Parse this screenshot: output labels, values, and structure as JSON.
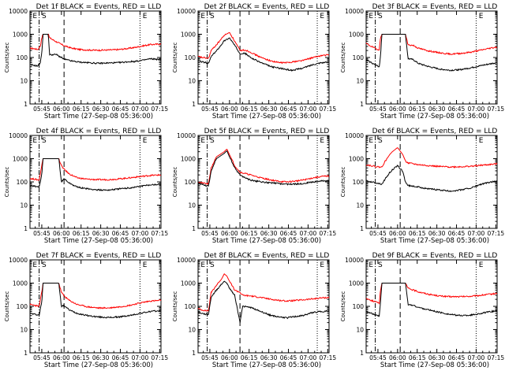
{
  "window": {
    "title": "Det 1f BLACK = Events, RED = LLD"
  },
  "colors": {
    "events": "#000000",
    "lld": "#ff0000",
    "frame": "#000000",
    "background": "#ffffff"
  },
  "shared": {
    "xlabel": "Start Time (27-Sep-08 05:36:00)",
    "ylabel": "Counts/sec",
    "x_ticks": [
      "05:45",
      "06:00",
      "06:15",
      "06:30",
      "06:45",
      "07:00",
      "07:15"
    ],
    "y_ticks": [
      "1",
      "10",
      "100",
      "1000",
      "10000"
    ],
    "markers": [
      "E",
      "S",
      "E"
    ]
  },
  "chart_data": [
    {
      "panel": 1,
      "title": "Det 1f BLACK = Events, RED = LLD",
      "type": "line",
      "yscale": "log",
      "xlim": [
        "05:36",
        "07:16"
      ],
      "ylim": [
        1,
        10000
      ],
      "xlabel": "Start Time (27-Sep-08 05:36:00)",
      "ylabel": "Counts/sec",
      "markers": [
        "E",
        "S",
        "E"
      ],
      "events_mins": [
        0,
        3,
        6,
        8,
        9,
        10,
        12,
        13,
        14,
        15,
        20,
        26,
        32,
        38,
        44,
        52,
        60,
        68,
        76,
        80,
        84,
        88,
        92,
        96,
        100
      ],
      "events": [
        48,
        46,
        43,
        62,
        160,
        1000,
        1000,
        1000,
        1000,
        130,
        135,
        85,
        70,
        63,
        60,
        56,
        58,
        60,
        66,
        68,
        72,
        80,
        88,
        85,
        80
      ],
      "lld_mins": [
        0,
        3,
        6,
        8,
        9,
        10,
        12,
        13,
        14,
        15,
        20,
        26,
        32,
        38,
        44,
        52,
        60,
        68,
        76,
        80,
        84,
        88,
        92,
        96,
        100
      ],
      "lld": [
        250,
        240,
        220,
        320,
        700,
        1000,
        1000,
        1000,
        1000,
        700,
        480,
        320,
        250,
        220,
        210,
        205,
        210,
        220,
        250,
        270,
        300,
        330,
        360,
        370,
        380
      ]
    },
    {
      "panel": 2,
      "title": "Det 2f BLACK = Events, RED = LLD",
      "type": "line",
      "yscale": "log",
      "xlim": [
        "05:36",
        "07:16"
      ],
      "ylim": [
        1,
        10000
      ],
      "xlabel": "Start Time (27-Sep-08 05:36:00)",
      "ylabel": "Counts/sec",
      "markers": [
        "E",
        "S",
        "E"
      ],
      "events_mins": [
        0,
        3,
        6,
        8,
        10,
        14,
        20,
        24,
        28,
        32,
        36,
        40,
        48,
        56,
        62,
        68,
        72,
        80,
        88,
        94,
        100
      ],
      "events": [
        70,
        65,
        60,
        55,
        110,
        190,
        520,
        700,
        330,
        150,
        150,
        100,
        60,
        40,
        35,
        30,
        28,
        35,
        50,
        60,
        62
      ],
      "lld_mins": [
        0,
        3,
        6,
        8,
        10,
        14,
        20,
        24,
        28,
        32,
        36,
        40,
        48,
        56,
        62,
        68,
        72,
        80,
        88,
        94,
        100
      ],
      "lld": [
        110,
        100,
        95,
        90,
        200,
        350,
        900,
        1200,
        500,
        200,
        210,
        170,
        100,
        70,
        60,
        60,
        65,
        75,
        100,
        120,
        130
      ]
    },
    {
      "panel": 3,
      "title": "Det 3f BLACK = Events, RED = LLD",
      "type": "line",
      "yscale": "log",
      "xlim": [
        "05:36",
        "07:16"
      ],
      "ylim": [
        1,
        10000
      ],
      "xlabel": "Start Time (27-Sep-08 05:36:00)",
      "ylabel": "Counts/sec",
      "markers": [
        "E",
        "S",
        "E"
      ],
      "events_mins": [
        0,
        4,
        8,
        10,
        11,
        12,
        14,
        20,
        26,
        30,
        32,
        36,
        40,
        48,
        56,
        64,
        72,
        80,
        88,
        96,
        100
      ],
      "events": [
        80,
        60,
        45,
        40,
        120,
        1000,
        1000,
        1000,
        1000,
        1000,
        90,
        80,
        55,
        40,
        32,
        28,
        30,
        36,
        45,
        55,
        60
      ],
      "lld_mins": [
        0,
        4,
        8,
        10,
        11,
        12,
        14,
        20,
        26,
        30,
        32,
        36,
        40,
        48,
        56,
        64,
        72,
        80,
        88,
        96,
        100
      ],
      "lld": [
        400,
        300,
        230,
        220,
        700,
        1000,
        1000,
        1000,
        1000,
        1000,
        350,
        330,
        250,
        190,
        160,
        140,
        150,
        170,
        210,
        260,
        280
      ]
    },
    {
      "panel": 4,
      "title": "Det 4f BLACK = Events, RED = LLD",
      "type": "line",
      "yscale": "log",
      "xlim": [
        "05:36",
        "07:16"
      ],
      "ylim": [
        1,
        10000
      ],
      "xlabel": "Start Time (27-Sep-08 05:36:00)",
      "ylabel": "Counts/sec",
      "markers": [
        "E",
        "S",
        "E"
      ],
      "events_mins": [
        0,
        4,
        7,
        9,
        10,
        12,
        20,
        22,
        24,
        26,
        30,
        36,
        44,
        52,
        60,
        68,
        76,
        84,
        92,
        100
      ],
      "events": [
        70,
        65,
        60,
        200,
        1000,
        1000,
        1000,
        1000,
        100,
        140,
        90,
        60,
        50,
        45,
        45,
        50,
        55,
        65,
        75,
        80
      ],
      "lld_mins": [
        0,
        4,
        7,
        9,
        10,
        12,
        20,
        22,
        24,
        26,
        30,
        36,
        44,
        52,
        60,
        68,
        76,
        84,
        92,
        100
      ],
      "lld": [
        140,
        130,
        120,
        500,
        1000,
        1000,
        1000,
        1000,
        500,
        350,
        220,
        150,
        130,
        125,
        125,
        135,
        150,
        170,
        190,
        200
      ]
    },
    {
      "panel": 5,
      "title": "Det 5f BLACK = Events, RED = LLD",
      "type": "line",
      "yscale": "log",
      "xlim": [
        "05:36",
        "07:16"
      ],
      "ylim": [
        1,
        10000
      ],
      "xlabel": "Start Time (27-Sep-08 05:36:00)",
      "ylabel": "Counts/sec",
      "markers": [
        "E",
        "S",
        "E"
      ],
      "events_mins": [
        0,
        3,
        6,
        8,
        10,
        14,
        20,
        22,
        24,
        28,
        32,
        36,
        40,
        48,
        56,
        62,
        68,
        72,
        80,
        88,
        94,
        100
      ],
      "events": [
        90,
        80,
        70,
        65,
        300,
        1000,
        1700,
        2200,
        1200,
        400,
        200,
        150,
        120,
        100,
        90,
        85,
        80,
        80,
        85,
        100,
        110,
        115
      ],
      "lld_mins": [
        0,
        3,
        6,
        8,
        10,
        14,
        20,
        22,
        24,
        28,
        32,
        36,
        40,
        48,
        56,
        62,
        68,
        72,
        80,
        88,
        94,
        100
      ],
      "lld": [
        100,
        90,
        85,
        80,
        400,
        1200,
        2000,
        2600,
        1500,
        500,
        260,
        230,
        200,
        150,
        120,
        105,
        100,
        105,
        120,
        150,
        170,
        180
      ]
    },
    {
      "panel": 6,
      "title": "Det 6f BLACK = Events, RED = LLD",
      "type": "line",
      "yscale": "log",
      "xlim": [
        "05:36",
        "07:16"
      ],
      "ylim": [
        1,
        10000
      ],
      "xlabel": "Start Time (27-Sep-08 05:36:00)",
      "ylabel": "Counts/sec",
      "markers": [
        "E",
        "S",
        "E"
      ],
      "events_mins": [
        0,
        4,
        8,
        12,
        14,
        18,
        20,
        24,
        28,
        30,
        32,
        36,
        40,
        48,
        56,
        64,
        72,
        80,
        88,
        96,
        100
      ],
      "events": [
        110,
        100,
        90,
        80,
        120,
        250,
        330,
        500,
        280,
        100,
        70,
        65,
        60,
        50,
        45,
        40,
        45,
        55,
        80,
        100,
        105
      ],
      "lld_mins": [
        0,
        4,
        8,
        12,
        14,
        18,
        20,
        24,
        28,
        30,
        32,
        36,
        40,
        48,
        56,
        64,
        72,
        80,
        88,
        96,
        100
      ],
      "lld": [
        550,
        500,
        450,
        430,
        700,
        1500,
        2000,
        3000,
        1500,
        800,
        650,
        600,
        550,
        500,
        460,
        440,
        450,
        470,
        520,
        570,
        600
      ]
    },
    {
      "panel": 7,
      "title": "Det 7f BLACK = Events, RED = LLD",
      "type": "line",
      "yscale": "log",
      "xlim": [
        "05:36",
        "07:16"
      ],
      "ylim": [
        1,
        10000
      ],
      "xlabel": "Start Time (27-Sep-08 05:36:00)",
      "ylabel": "Counts/sec",
      "markers": [
        "E",
        "S",
        "E"
      ],
      "events_mins": [
        0,
        4,
        7,
        9,
        10,
        12,
        20,
        22,
        24,
        26,
        30,
        36,
        44,
        52,
        60,
        68,
        76,
        84,
        92,
        100
      ],
      "events": [
        50,
        45,
        42,
        150,
        1000,
        1000,
        1000,
        1000,
        100,
        110,
        70,
        50,
        40,
        35,
        33,
        35,
        40,
        50,
        60,
        65
      ],
      "lld_mins": [
        0,
        4,
        7,
        9,
        10,
        12,
        20,
        22,
        24,
        26,
        30,
        36,
        44,
        52,
        60,
        68,
        76,
        84,
        92,
        100
      ],
      "lld": [
        120,
        110,
        100,
        400,
        1000,
        1000,
        1000,
        1000,
        400,
        280,
        180,
        120,
        95,
        85,
        85,
        95,
        110,
        140,
        170,
        180
      ]
    },
    {
      "panel": 8,
      "title": "Det 8f BLACK = Events, RED = LLD",
      "type": "line",
      "yscale": "log",
      "xlim": [
        "05:36",
        "07:16"
      ],
      "ylim": [
        1,
        10000
      ],
      "xlabel": "Start Time (27-Sep-08 05:36:00)",
      "ylabel": "Counts/sec",
      "markers": [
        "E",
        "S",
        "E"
      ],
      "events_mins": [
        0,
        3,
        6,
        8,
        10,
        14,
        18,
        20,
        22,
        24,
        28,
        32,
        34,
        40,
        48,
        56,
        62,
        68,
        72,
        80,
        88,
        94,
        100
      ],
      "events": [
        55,
        50,
        45,
        45,
        250,
        500,
        900,
        1200,
        1000,
        600,
        300,
        20,
        100,
        90,
        60,
        40,
        35,
        32,
        35,
        40,
        55,
        60,
        62
      ],
      "lld_mins": [
        0,
        3,
        6,
        8,
        10,
        14,
        18,
        20,
        22,
        24,
        28,
        32,
        34,
        40,
        48,
        56,
        62,
        68,
        72,
        80,
        88,
        94,
        100
      ],
      "lld": [
        80,
        70,
        65,
        65,
        400,
        800,
        1500,
        2500,
        2000,
        1200,
        500,
        400,
        300,
        280,
        240,
        200,
        180,
        170,
        175,
        190,
        210,
        230,
        240
      ]
    },
    {
      "panel": 9,
      "title": "Det 9f BLACK = Events, RED = LLD",
      "type": "line",
      "yscale": "log",
      "xlim": [
        "05:36",
        "07:16"
      ],
      "ylim": [
        1,
        10000
      ],
      "xlabel": "Start Time (27-Sep-08 05:36:00)",
      "ylabel": "Counts/sec",
      "markers": [
        "E",
        "S",
        "E"
      ],
      "events_mins": [
        0,
        4,
        8,
        10,
        11,
        12,
        14,
        20,
        26,
        30,
        32,
        36,
        40,
        48,
        56,
        64,
        72,
        80,
        88,
        96,
        100
      ],
      "events": [
        60,
        50,
        40,
        38,
        150,
        1000,
        1000,
        1000,
        1000,
        1000,
        120,
        110,
        90,
        70,
        55,
        45,
        40,
        42,
        50,
        60,
        65
      ],
      "lld_mins": [
        0,
        4,
        8,
        10,
        11,
        12,
        14,
        20,
        26,
        30,
        32,
        36,
        40,
        48,
        56,
        64,
        72,
        80,
        88,
        96,
        100
      ],
      "lld": [
        220,
        180,
        150,
        140,
        500,
        1000,
        1000,
        1000,
        1000,
        1000,
        600,
        500,
        420,
        330,
        280,
        260,
        260,
        270,
        300,
        340,
        360
      ]
    }
  ]
}
